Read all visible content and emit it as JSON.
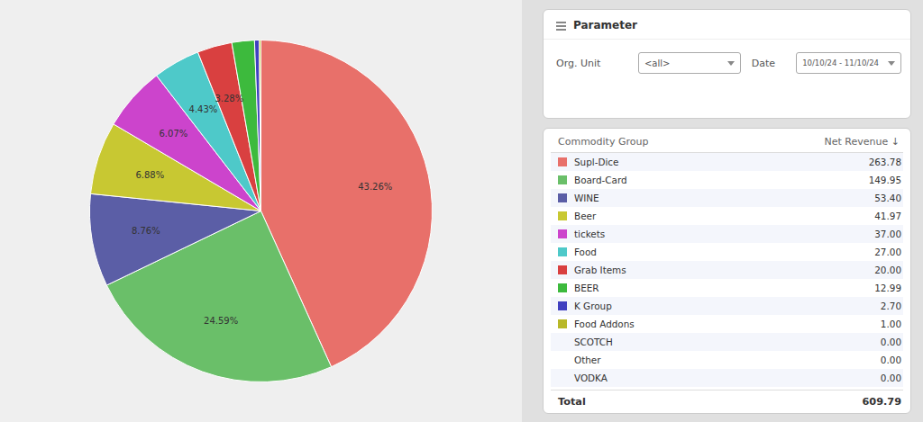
{
  "chart_data": [
    {
      "type": "pie",
      "categories": [
        "Supl-Dice",
        "Board-Card",
        "WINE",
        "Beer",
        "tickets",
        "Food",
        "Grab Items",
        "BEER",
        "K Group",
        "Food Addons"
      ],
      "values": [
        43.26,
        24.59,
        8.76,
        6.88,
        6.07,
        4.43,
        3.28,
        2.13,
        0.44,
        0.16
      ],
      "colors": [
        "#e8706a",
        "#6abf69",
        "#5b5ea6",
        "#c8c832",
        "#cc44cc",
        "#4ec9c9",
        "#d94040",
        "#3dba3d",
        "#4040c0",
        "#b8b828"
      ],
      "value_labels": [
        "43.26%",
        "24.59%",
        "8.76%",
        "6.88%",
        "6.07%",
        "4.43%",
        "3.28%",
        null,
        null,
        null
      ],
      "data_labels": true
    },
    {
      "type": "table",
      "title": "Parameter",
      "annotations": [
        "Org. Unit",
        "<all>",
        "Date",
        "10/10/24 - 11/10/24"
      ],
      "columns": [
        "Commodity Group",
        "Net Revenue ↓"
      ],
      "categories": [
        "Supl-Dice",
        "Board-Card",
        "WINE",
        "Beer",
        "tickets",
        "Food",
        "Grab Items",
        "BEER",
        "K Group",
        "Food Addons",
        "SCOTCH",
        "Other",
        "VODKA"
      ],
      "values": [
        263.78,
        149.95,
        53.4,
        41.97,
        37.0,
        27.0,
        20.0,
        12.99,
        2.7,
        1.0,
        0.0,
        0.0,
        0.0
      ],
      "value_labels": [
        "263.78",
        "149.95",
        "53.40",
        "41.97",
        "37.00",
        "27.00",
        "20.00",
        "12.99",
        "2.70",
        "1.00",
        "0.00",
        "0.00",
        "0.00"
      ],
      "colors": [
        "#e8706a",
        "#6abf69",
        "#5b5ea6",
        "#c8c832",
        "#cc44cc",
        "#4ec9c9",
        "#d94040",
        "#3dba3d",
        "#4040c0",
        "#b8b828",
        null,
        null,
        null
      ],
      "total_label": "Total",
      "total": 609.79
    }
  ]
}
